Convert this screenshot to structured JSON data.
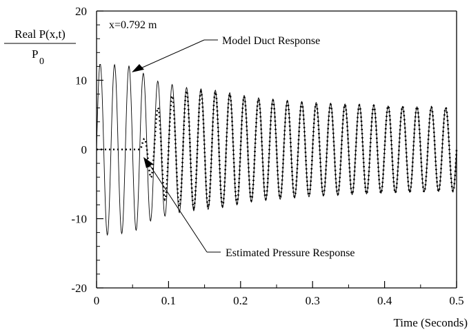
{
  "chart_data": {
    "type": "line",
    "title": "",
    "xlabel": "Time (Seconds)",
    "ylabel": {
      "numerator": "Real P(x,t)",
      "denominator_base": "P",
      "denominator_subscript": "0"
    },
    "xlim": [
      0,
      0.5
    ],
    "ylim": [
      -20,
      20
    ],
    "x_ticks": [
      {
        "value": 0,
        "label": "0"
      },
      {
        "value": 0.1,
        "label": "0.1"
      },
      {
        "value": 0.2,
        "label": "0.2"
      },
      {
        "value": 0.3,
        "label": "0.3"
      },
      {
        "value": 0.4,
        "label": "0.4"
      },
      {
        "value": 0.5,
        "label": "0.5"
      }
    ],
    "y_ticks": [
      {
        "value": -20,
        "label": "-20"
      },
      {
        "value": -10,
        "label": "-10"
      },
      {
        "value": 0,
        "label": "0"
      },
      {
        "value": 10,
        "label": "10"
      },
      {
        "value": 20,
        "label": "20"
      }
    ],
    "grid": false,
    "position_label": "x=0.792 m",
    "series": [
      {
        "name": "Model Duct Response",
        "style": "solid",
        "color": "#000000",
        "frequency_hz": 50,
        "start_time": 0,
        "envelope": [
          {
            "t": 0.0,
            "amp": 12.5
          },
          {
            "t": 0.05,
            "amp": 12.0
          },
          {
            "t": 0.08,
            "amp": 10.0
          },
          {
            "t": 0.12,
            "amp": 9.0
          },
          {
            "t": 0.17,
            "amp": 8.5
          },
          {
            "t": 0.22,
            "amp": 7.5
          },
          {
            "t": 0.3,
            "amp": 6.8
          },
          {
            "t": 0.4,
            "amp": 6.3
          },
          {
            "t": 0.5,
            "amp": 6.0
          }
        ],
        "clip": [
          -12.8,
          12.3
        ]
      },
      {
        "name": "Estimated Pressure Response",
        "style": "dotted",
        "color": "#000000",
        "frequency_hz": 50,
        "start_time": 0.06,
        "envelope": [
          {
            "t": 0.06,
            "amp": 0.0
          },
          {
            "t": 0.075,
            "amp": 4.0
          },
          {
            "t": 0.09,
            "amp": 7.0
          },
          {
            "t": 0.12,
            "amp": 8.5
          },
          {
            "t": 0.17,
            "amp": 8.3
          },
          {
            "t": 0.22,
            "amp": 7.3
          },
          {
            "t": 0.3,
            "amp": 6.6
          },
          {
            "t": 0.4,
            "amp": 6.3
          },
          {
            "t": 0.5,
            "amp": 6.0
          }
        ],
        "clip": [
          -12.8,
          12.3
        ]
      }
    ],
    "annotations": [
      {
        "text": "Model Duct Response",
        "target_x": 0.05,
        "target_y": 11
      },
      {
        "text": "Estimated Pressure Response",
        "target_x": 0.062,
        "target_y": -1.5
      }
    ]
  }
}
